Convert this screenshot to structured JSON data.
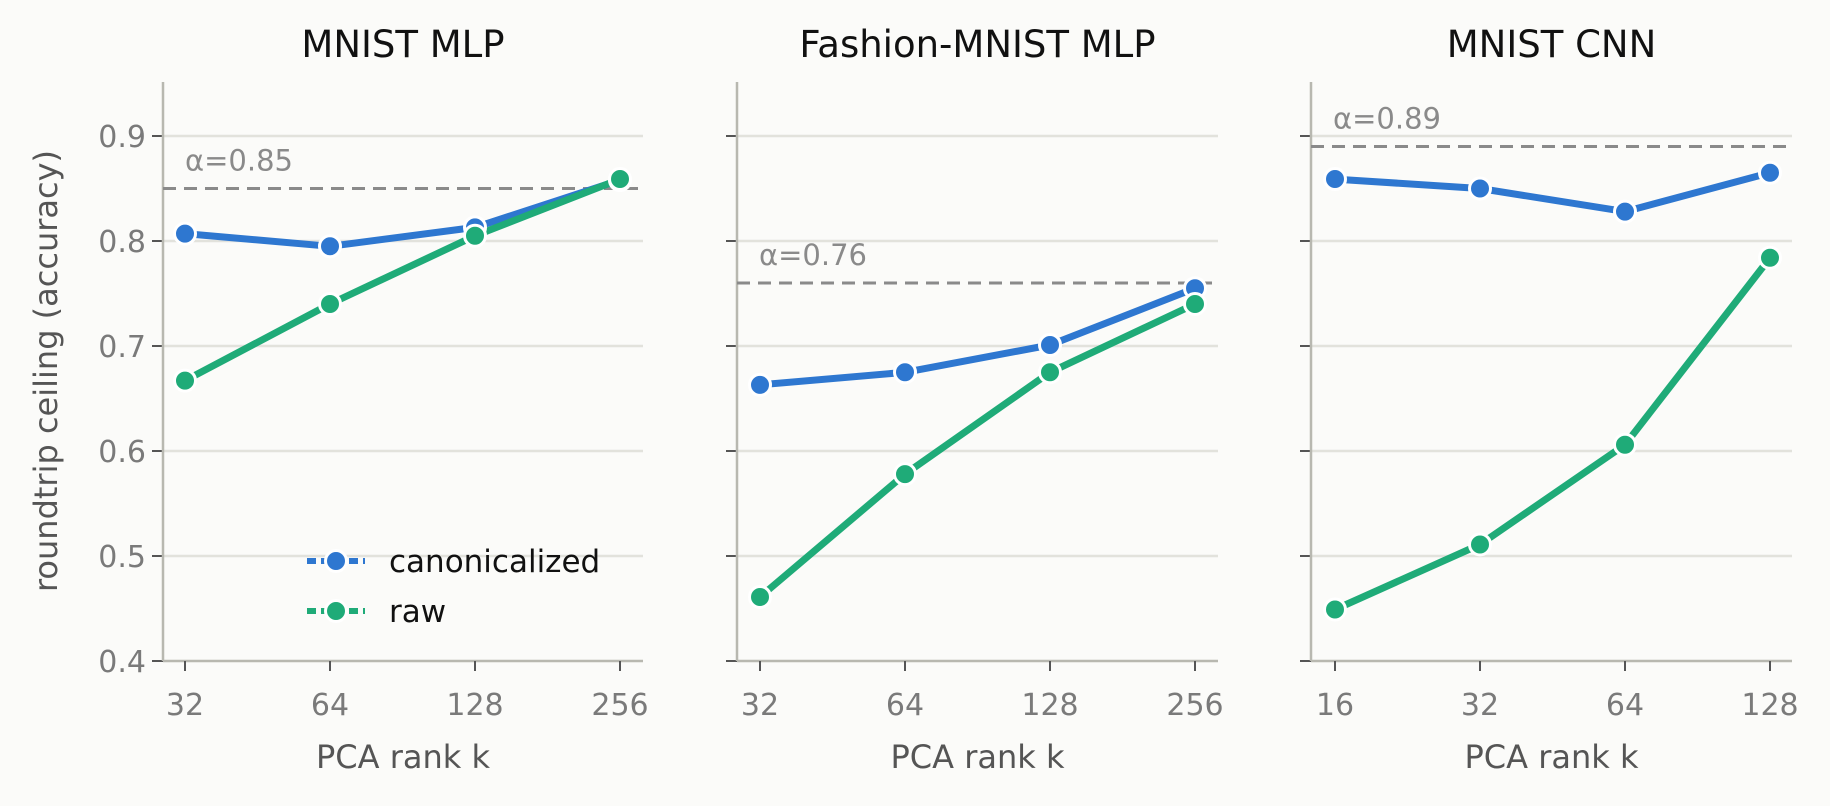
{
  "chart_data": [
    {
      "type": "line",
      "title": "MNIST MLP",
      "xlabel": "PCA rank k",
      "ylabel": "roundtrip ceiling (accuracy)",
      "x_scale": "log2",
      "x": [
        32,
        64,
        128,
        256
      ],
      "xticks": [
        "32",
        "64",
        "128",
        "256"
      ],
      "ylim": [
        0.4,
        0.95
      ],
      "yticks": [
        "0.4",
        "0.5",
        "0.6",
        "0.7",
        "0.8",
        "0.9"
      ],
      "grid": "horizontal",
      "reference_line": {
        "value": 0.85,
        "label": "α=0.85"
      },
      "series": [
        {
          "name": "canonicalized",
          "color": "#2e77d0",
          "values": [
            0.807,
            0.795,
            0.813,
            0.858
          ]
        },
        {
          "name": "raw",
          "color": "#1fab78",
          "values": [
            0.667,
            0.74,
            0.805,
            0.859
          ]
        }
      ],
      "legend": "lower right"
    },
    {
      "type": "line",
      "title": "Fashion-MNIST MLP",
      "xlabel": "PCA rank k",
      "ylabel": "",
      "x_scale": "log2",
      "x": [
        32,
        64,
        128,
        256
      ],
      "xticks": [
        "32",
        "64",
        "128",
        "256"
      ],
      "ylim": [
        0.4,
        0.95
      ],
      "yticks": [
        "",
        "",
        "",
        "",
        "",
        ""
      ],
      "grid": "horizontal",
      "reference_line": {
        "value": 0.76,
        "label": "α=0.76"
      },
      "series": [
        {
          "name": "canonicalized",
          "color": "#2e77d0",
          "values": [
            0.663,
            0.675,
            0.701,
            0.755
          ]
        },
        {
          "name": "raw",
          "color": "#1fab78",
          "values": [
            0.461,
            0.578,
            0.675,
            0.74
          ]
        }
      ]
    },
    {
      "type": "line",
      "title": "MNIST CNN",
      "xlabel": "PCA rank k",
      "ylabel": "",
      "x_scale": "log2",
      "x": [
        16,
        32,
        64,
        128
      ],
      "xticks": [
        "16",
        "32",
        "64",
        "128"
      ],
      "ylim": [
        0.4,
        0.95
      ],
      "yticks": [
        "",
        "",
        "",
        "",
        "",
        ""
      ],
      "grid": "horizontal",
      "reference_line": {
        "value": 0.89,
        "label": "α=0.89"
      },
      "series": [
        {
          "name": "canonicalized",
          "color": "#2e77d0",
          "values": [
            0.859,
            0.85,
            0.828,
            0.865
          ]
        },
        {
          "name": "raw",
          "color": "#1fab78",
          "values": [
            0.449,
            0.511,
            0.606,
            0.784
          ]
        }
      ]
    }
  ]
}
